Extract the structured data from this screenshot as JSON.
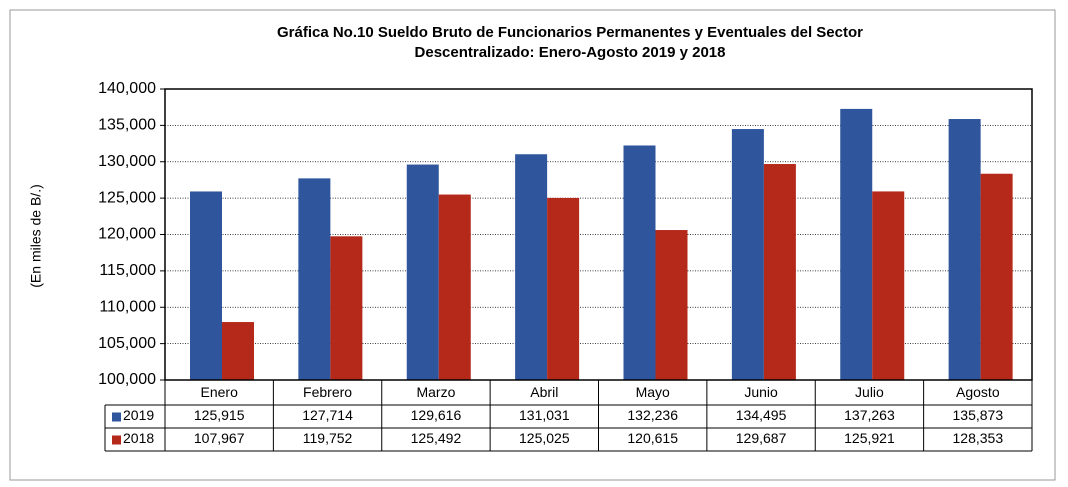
{
  "chart_data": {
    "type": "bar",
    "title": [
      "Gráfica No.10 Sueldo Bruto de Funcionarios Permanentes y Eventuales del Sector",
      "Descentralizado: Enero-Agosto 2019 y 2018"
    ],
    "y_label": "(En miles de B/.)",
    "categories": [
      "Enero",
      "Febrero",
      "Marzo",
      "Abril",
      "Mayo",
      "Junio",
      "Julio",
      "Agosto"
    ],
    "series": [
      {
        "name": "2019",
        "color": "#2f559c",
        "values": [
          125915,
          127714,
          129616,
          131031,
          132236,
          134495,
          137263,
          135873
        ],
        "value_labels": [
          "125,915",
          "127,714",
          "129,616",
          "131,031",
          "132,236",
          "134,495",
          "137,263",
          "135,873"
        ]
      },
      {
        "name": "2018",
        "color": "#b5291a",
        "values": [
          107967,
          119752,
          125492,
          125025,
          120615,
          129687,
          125921,
          128353
        ],
        "value_labels": [
          "107,967",
          "119,752",
          "125,492",
          "125,025",
          "120,615",
          "129,687",
          "125,921",
          "128,353"
        ]
      }
    ],
    "ylim": [
      100000,
      140000
    ],
    "yticks": [
      {
        "value": 100000,
        "label": "100,000"
      },
      {
        "value": 105000,
        "label": "105,000"
      },
      {
        "value": 110000,
        "label": "110,000"
      },
      {
        "value": 115000,
        "label": "115,000"
      },
      {
        "value": 120000,
        "label": "120,000"
      },
      {
        "value": 125000,
        "label": "125,000"
      },
      {
        "value": 130000,
        "label": "130,000"
      },
      {
        "value": 135000,
        "label": "135,000"
      },
      {
        "value": 140000,
        "label": "140,000"
      }
    ],
    "grid": true
  }
}
